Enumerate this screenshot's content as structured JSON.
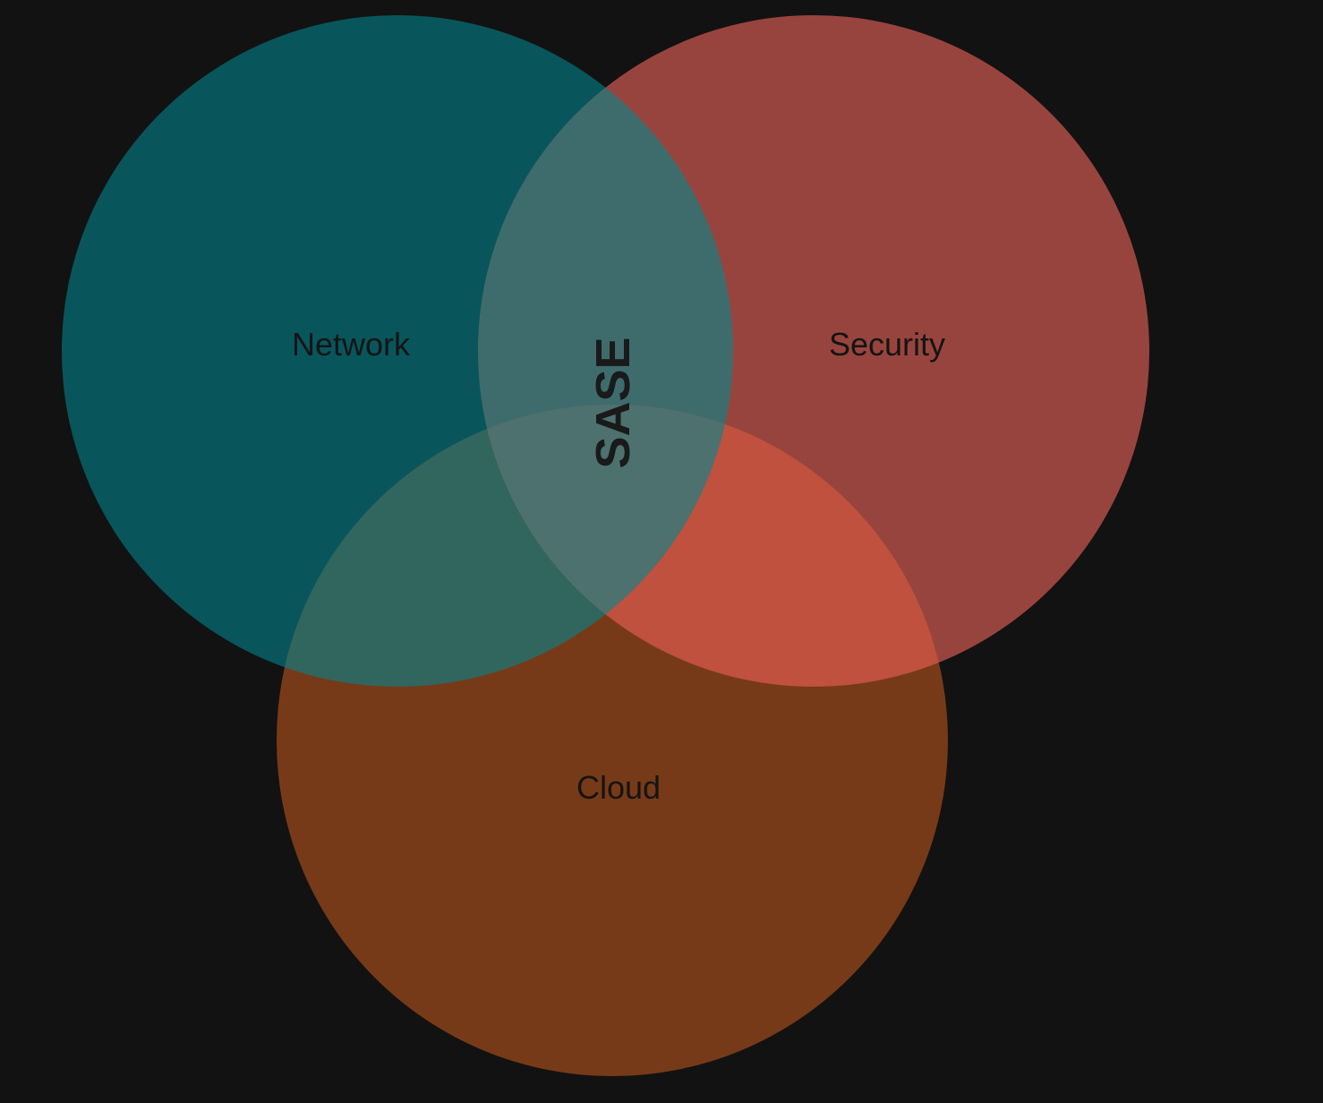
{
  "diagram": {
    "type": "venn",
    "background_color": "#121212",
    "sets": [
      {
        "id": "network",
        "label": "Network",
        "color": "#08565c"
      },
      {
        "id": "security",
        "label": "Security",
        "color": "#98443e"
      },
      {
        "id": "cloud",
        "label": "Cloud",
        "color": "#773a18"
      }
    ],
    "intersections": {
      "network_security": "#3e6c6c",
      "network_cloud": "#30665e",
      "security_cloud": "#bf513e",
      "all": "#4d716e"
    },
    "center_label": "SASE",
    "text_color": "#141414"
  }
}
